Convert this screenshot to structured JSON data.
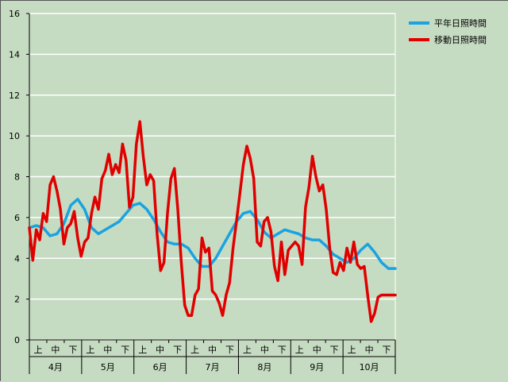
{
  "chart_data": {
    "type": "line",
    "title": "",
    "xlabel": "",
    "ylabel": "",
    "ylim": [
      0,
      16
    ],
    "yticks": [
      0,
      2,
      4,
      6,
      8,
      10,
      12,
      14,
      16
    ],
    "x_sub_labels": [
      "上",
      "中",
      "下"
    ],
    "months": [
      "4月",
      "5月",
      "6月",
      "7月",
      "8月",
      "9月",
      "10月"
    ],
    "grid": true,
    "legend_position": "right",
    "background_color": "#c6dcc2",
    "series": [
      {
        "name": "平年日照時間",
        "color": "#1aa3e0",
        "x": [
          0,
          4,
          8,
          12,
          16,
          20,
          24,
          28,
          32,
          36,
          40,
          44,
          48,
          52,
          56,
          60,
          64,
          68,
          72,
          76,
          80,
          84,
          88,
          92,
          96,
          100,
          104,
          108,
          112,
          116,
          120,
          124,
          128,
          132,
          136,
          140,
          144,
          148,
          152,
          156,
          160,
          164,
          168,
          172,
          176,
          180,
          184,
          188,
          192,
          196,
          200,
          204,
          208,
          212
        ],
        "y": [
          5.5,
          5.6,
          5.5,
          5.1,
          5.2,
          5.7,
          6.6,
          6.9,
          6.4,
          5.5,
          5.2,
          5.4,
          5.6,
          5.8,
          6.2,
          6.6,
          6.7,
          6.4,
          5.9,
          5.3,
          4.8,
          4.7,
          4.7,
          4.5,
          4.0,
          3.6,
          3.6,
          4.0,
          4.6,
          5.2,
          5.8,
          6.2,
          6.3,
          5.9,
          5.3,
          5.0,
          5.2,
          5.4,
          5.3,
          5.2,
          5.0,
          4.9,
          4.9,
          4.6,
          4.2,
          4.0,
          3.8,
          4.0,
          4.4,
          4.7,
          4.3,
          3.8,
          3.5,
          3.5
        ]
      },
      {
        "name": "移動日照時間",
        "color": "#e00000",
        "x": [
          0,
          2,
          4,
          6,
          8,
          10,
          12,
          14,
          16,
          18,
          20,
          22,
          24,
          26,
          28,
          30,
          32,
          34,
          36,
          38,
          40,
          42,
          44,
          46,
          48,
          50,
          52,
          54,
          56,
          58,
          60,
          62,
          64,
          66,
          68,
          70,
          72,
          74,
          76,
          78,
          80,
          82,
          84,
          86,
          88,
          90,
          92,
          94,
          96,
          98,
          100,
          102,
          104,
          106,
          108,
          110,
          112,
          114,
          116,
          118,
          120,
          122,
          124,
          126,
          128,
          130,
          132,
          134,
          136,
          138,
          140,
          142,
          144,
          146,
          148,
          150,
          152,
          154,
          156,
          158,
          160,
          162,
          164,
          166,
          168,
          170,
          172,
          174,
          176,
          178,
          180,
          182,
          184,
          186,
          188,
          190,
          192,
          194,
          196,
          198,
          200,
          202,
          204,
          206,
          208,
          210,
          212
        ],
        "y": [
          5.5,
          3.9,
          5.4,
          4.9,
          6.2,
          5.8,
          7.6,
          8.0,
          7.3,
          6.4,
          4.7,
          5.5,
          5.7,
          6.3,
          5.0,
          4.1,
          4.8,
          5.0,
          6.2,
          7.0,
          6.4,
          7.9,
          8.3,
          9.1,
          8.1,
          8.6,
          8.2,
          9.6,
          8.8,
          6.5,
          7.0,
          9.6,
          10.7,
          9.0,
          7.6,
          8.1,
          7.8,
          5.2,
          3.4,
          3.8,
          6.2,
          7.9,
          8.4,
          6.4,
          3.8,
          1.7,
          1.2,
          1.2,
          2.2,
          2.5,
          5.0,
          4.3,
          4.5,
          2.4,
          2.2,
          1.8,
          1.2,
          2.2,
          2.8,
          4.5,
          5.8,
          7.2,
          8.6,
          9.5,
          8.9,
          7.9,
          4.8,
          4.6,
          5.8,
          6.0,
          5.3,
          3.6,
          2.9,
          4.8,
          3.2,
          4.4,
          4.6,
          4.8,
          4.6,
          3.7,
          6.5,
          7.5,
          9.0,
          8.0,
          7.3,
          7.6,
          6.4,
          4.5,
          3.3,
          3.2,
          3.8,
          3.4,
          4.5,
          3.8,
          4.8,
          3.7,
          3.5,
          3.6,
          2.2,
          0.9,
          1.3,
          2.1,
          2.2,
          2.2,
          2.2,
          2.2,
          2.2
        ]
      }
    ]
  }
}
